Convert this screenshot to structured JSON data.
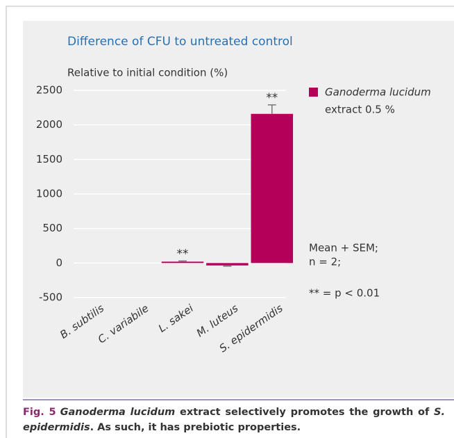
{
  "chart_data": {
    "type": "bar",
    "title": "Difference of CFU to untreated control",
    "y_label": "Relative to initial condition (%)",
    "categories": [
      "B. subtilis",
      "C. variabile",
      "L. sakei",
      "M. luteus",
      "S. epidermidis"
    ],
    "series": [
      {
        "name": "Ganoderma lucidum",
        "legend_note": "extract 0.5 %",
        "color": "#b5005a",
        "values": [
          0,
          0,
          20,
          -35,
          2160
        ],
        "errors": [
          0,
          0,
          10,
          10,
          130
        ]
      }
    ],
    "annotations": [
      {
        "x": "L. sakei",
        "text": "**"
      },
      {
        "x": "S. epidermidis",
        "text": "**"
      }
    ],
    "notes": [
      "Mean + SEM;",
      "n = 2;",
      "** = p < 0.01"
    ],
    "ylim": [
      -500,
      2500
    ],
    "yticks": [
      -500,
      0,
      500,
      1000,
      1500,
      2000,
      2500
    ],
    "grid": true
  },
  "caption": {
    "label": "Fig. 5",
    "segments": [
      {
        "text": "Ganoderma lucidum",
        "italic": true
      },
      {
        "text": " extract selectively promotes the growth of ",
        "italic": false
      },
      {
        "text": "S. epidermidis",
        "italic": true
      },
      {
        "text": ". As such, it has prebiotic properties.",
        "italic": false
      }
    ]
  }
}
